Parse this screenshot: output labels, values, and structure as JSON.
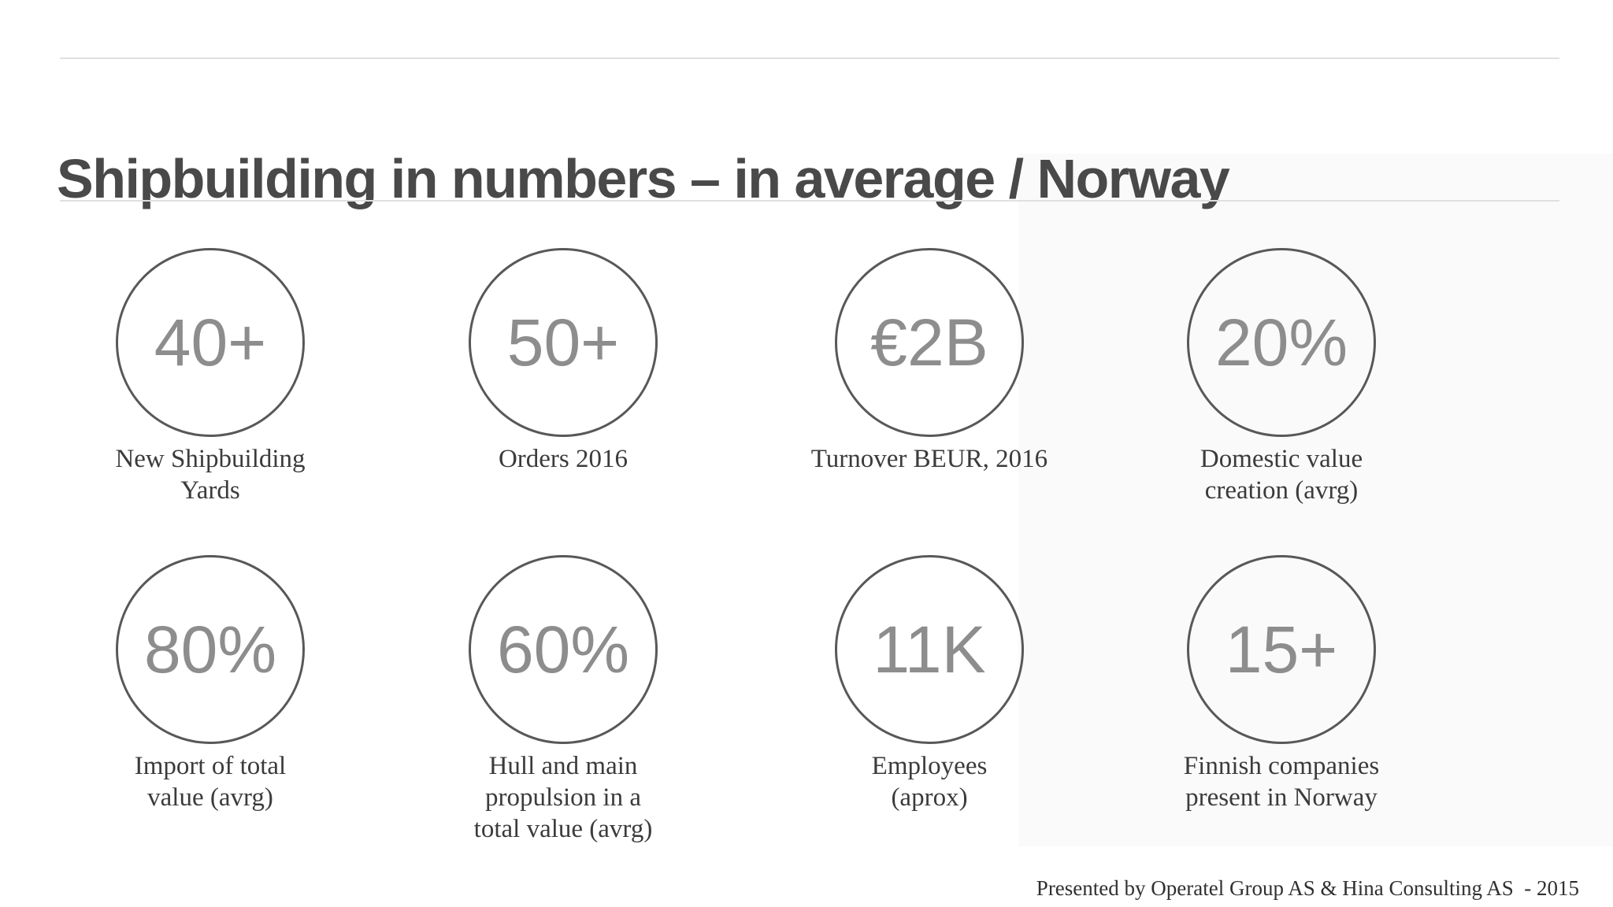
{
  "slide": {
    "title": "Shipbuilding in numbers – in average / Norway",
    "footer": "Presented by Operatel Group AS & Hina Consulting AS  - 2015"
  },
  "stats": [
    {
      "value": "40+",
      "label": "New Shipbuilding\nYards"
    },
    {
      "value": "50+",
      "label": "Orders 2016"
    },
    {
      "value": "€2B",
      "label": "Turnover BEUR, 2016"
    },
    {
      "value": "20%",
      "label": "Domestic value\ncreation (avrg)"
    },
    {
      "value": "80%",
      "label": "Import of total\nvalue (avrg)"
    },
    {
      "value": "60%",
      "label": "Hull and main\npropulsion in a\ntotal value (avrg)"
    },
    {
      "value": "11K",
      "label": "Employees\n(aprox)"
    },
    {
      "value": "15+",
      "label": "Finnish companies\npresent in Norway"
    }
  ],
  "colors": {
    "title_text": "#494949",
    "circle_stroke": "#585858",
    "stat_value_text": "#8d8d8d",
    "label_text": "#3b3b3b",
    "hairline": "#e0e0e0",
    "right_panel_tint": "#fafafa",
    "footer_text": "#303030",
    "background": "#ffffff"
  }
}
